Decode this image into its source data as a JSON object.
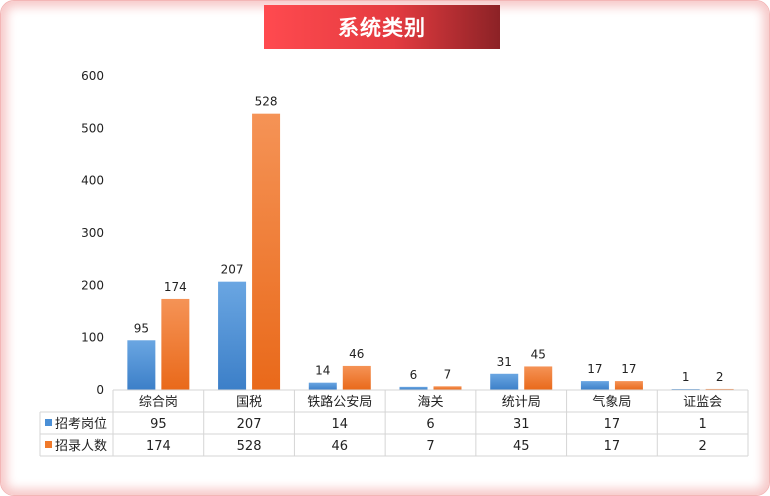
{
  "title": "系统类别",
  "chart_data": {
    "type": "bar",
    "categories": [
      "综合岗",
      "国税",
      "铁路公安局",
      "海关",
      "统计局",
      "气象局",
      "证监会"
    ],
    "series": [
      {
        "name": "招考岗位",
        "values": [
          95,
          207,
          14,
          6,
          31,
          17,
          1
        ],
        "color": "#4a8fd6"
      },
      {
        "name": "招录人数",
        "values": [
          174,
          528,
          46,
          7,
          45,
          17,
          2
        ],
        "color": "#f0792a"
      }
    ],
    "yticks": [
      0,
      100,
      200,
      300,
      400,
      500,
      600
    ],
    "ylim": [
      0,
      600
    ],
    "grid": false,
    "legend": "data-table"
  }
}
